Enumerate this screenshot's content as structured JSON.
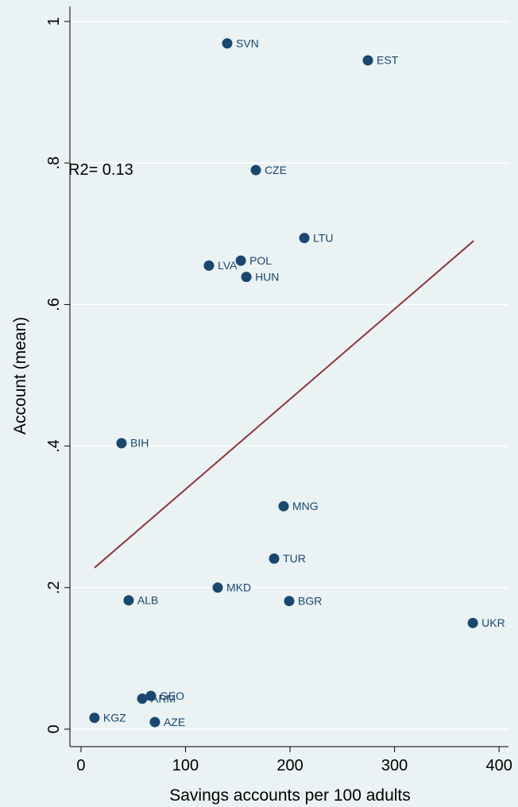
{
  "chart_data": {
    "type": "scatter",
    "xlabel": "Savings accounts per 100 adults",
    "ylabel": "Account (mean)",
    "annotation": "R2= 0.13",
    "xlim": [
      -10.6,
      409
    ],
    "ylim": [
      -0.0247,
      1.0213
    ],
    "xticks": [
      0,
      100,
      200,
      300,
      400
    ],
    "yticks": [
      0,
      {
        "value": 0.2,
        "label": ".2"
      },
      {
        "value": 0.4,
        "label": ".4"
      },
      {
        "value": 0.6,
        "label": ".6"
      },
      {
        "value": 0.8,
        "label": ".8"
      },
      1
    ],
    "grid": true,
    "points": {
      "color": "#1a476f",
      "labels": [
        "SVN",
        "EST",
        "CZE",
        "LTU",
        "POL",
        "LVA",
        "HUN",
        "BIH",
        "MNG",
        "TUR",
        "MKD",
        "ALB",
        "BGR",
        "UKR",
        "GEO",
        "ARM",
        "KGZ",
        "AZE"
      ],
      "x": [
        139.9,
        274.5,
        167.3,
        213.7,
        152.9,
        122.4,
        158.2,
        38.8,
        193.9,
        184.8,
        130.8,
        45.6,
        199.2,
        374.9,
        66.9,
        58.6,
        12.9,
        70.7
      ],
      "y": [
        0.969,
        0.945,
        0.79,
        0.694,
        0.662,
        0.655,
        0.639,
        0.404,
        0.315,
        0.241,
        0.2,
        0.182,
        0.181,
        0.15,
        0.047,
        0.043,
        0.016,
        0.01
      ]
    },
    "fit_line": {
      "color": "#90353b",
      "x": [
        12.9,
        375.7
      ],
      "y": [
        0.228,
        0.69
      ]
    }
  }
}
